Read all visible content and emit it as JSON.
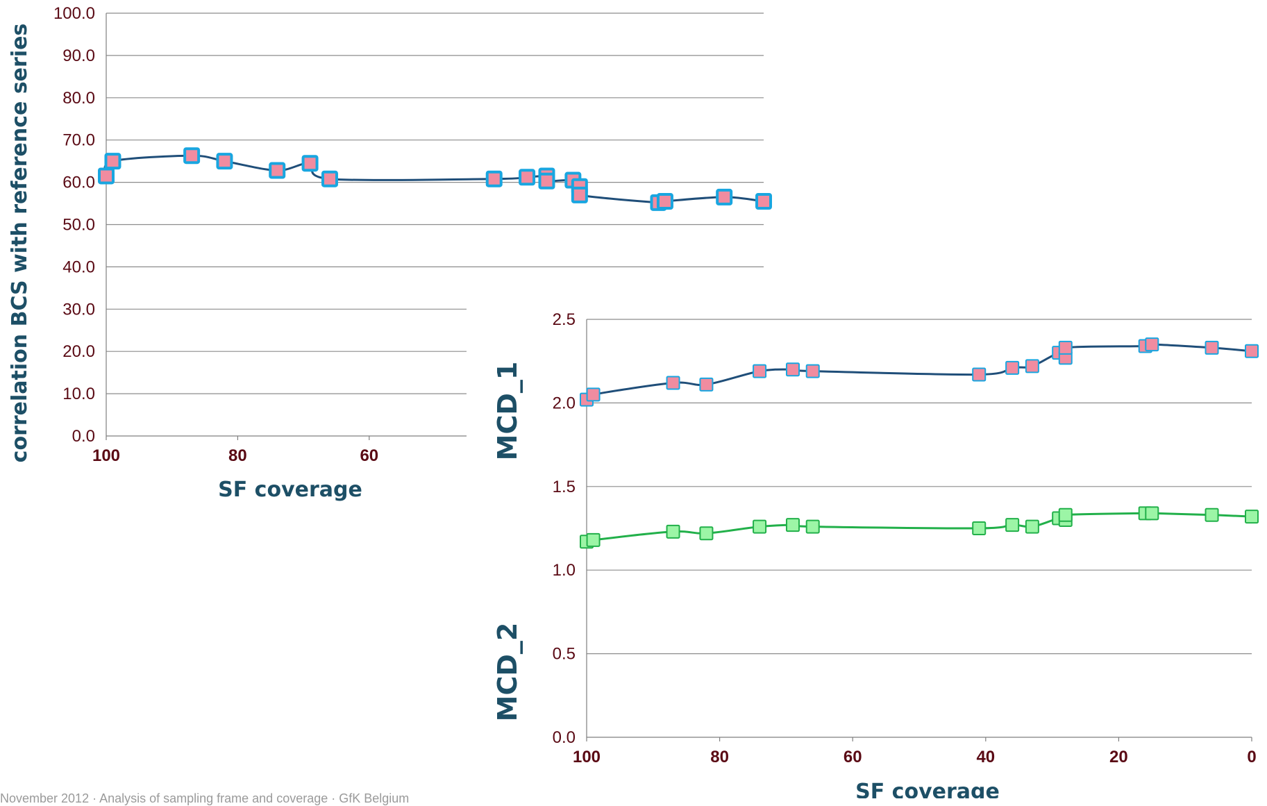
{
  "footer_text": "November 2012 · Analysis of sampling frame and coverage · GfK Belgium",
  "chart_data": [
    {
      "type": "line",
      "ylabel": "correlation BCS with reference series",
      "xlabel": "SF coverage",
      "xlim": [
        100,
        0
      ],
      "ylim": [
        0,
        100
      ],
      "x_ticks": [
        "100",
        "80",
        "60"
      ],
      "y_ticks": [
        "0.0",
        "10.0",
        "20.0",
        "30.0",
        "40.0",
        "50.0",
        "60.0",
        "70.0",
        "80.0",
        "90.0",
        "100.0"
      ],
      "grid": true,
      "colors": {
        "line": "#1f4e79",
        "marker_edge": "#19a6e0",
        "marker_fill": "#f08ca0"
      },
      "series": [
        {
          "x": [
            100,
            99,
            87,
            82,
            74,
            69,
            66,
            41,
            36,
            33,
            33,
            29,
            28,
            28,
            16,
            15,
            6,
            0
          ],
          "y": [
            61.5,
            65.0,
            66.3,
            65.0,
            62.8,
            64.5,
            60.8,
            60.8,
            61.2,
            61.5,
            60.3,
            60.5,
            59.0,
            57.0,
            55.2,
            55.5,
            56.5,
            55.5
          ]
        }
      ]
    },
    {
      "type": "line",
      "xlabel": "SF coverage",
      "ylabel_top": "MCD_1",
      "ylabel_bottom": "MCD_2",
      "xlim": [
        100,
        0
      ],
      "ylim": [
        0,
        2.5
      ],
      "x_ticks": [
        "100",
        "80",
        "60",
        "40",
        "20",
        "0"
      ],
      "y_ticks": [
        "0.0",
        "0.5",
        "1.0",
        "1.5",
        "2.0",
        "2.5"
      ],
      "grid": true,
      "series": [
        {
          "name": "MCD_1",
          "color": "#1f4e79",
          "marker_edge": "#19a6e0",
          "marker_fill": "#f08ca0",
          "x": [
            100,
            99,
            87,
            82,
            74,
            69,
            66,
            41,
            36,
            33,
            29,
            28,
            28,
            16,
            15,
            6,
            0
          ],
          "y": [
            2.02,
            2.05,
            2.12,
            2.11,
            2.19,
            2.2,
            2.19,
            2.17,
            2.21,
            2.22,
            2.3,
            2.27,
            2.33,
            2.34,
            2.35,
            2.33,
            2.31
          ]
        },
        {
          "name": "MCD_2",
          "color": "#22b04a",
          "marker_edge": "#22b04a",
          "marker_fill": "#9cf5a6",
          "x": [
            100,
            99,
            87,
            82,
            74,
            69,
            66,
            41,
            36,
            33,
            29,
            28,
            28,
            16,
            15,
            6,
            0
          ],
          "y": [
            1.17,
            1.18,
            1.23,
            1.22,
            1.26,
            1.27,
            1.26,
            1.25,
            1.27,
            1.26,
            1.31,
            1.3,
            1.33,
            1.34,
            1.34,
            1.33,
            1.32
          ]
        }
      ]
    }
  ]
}
